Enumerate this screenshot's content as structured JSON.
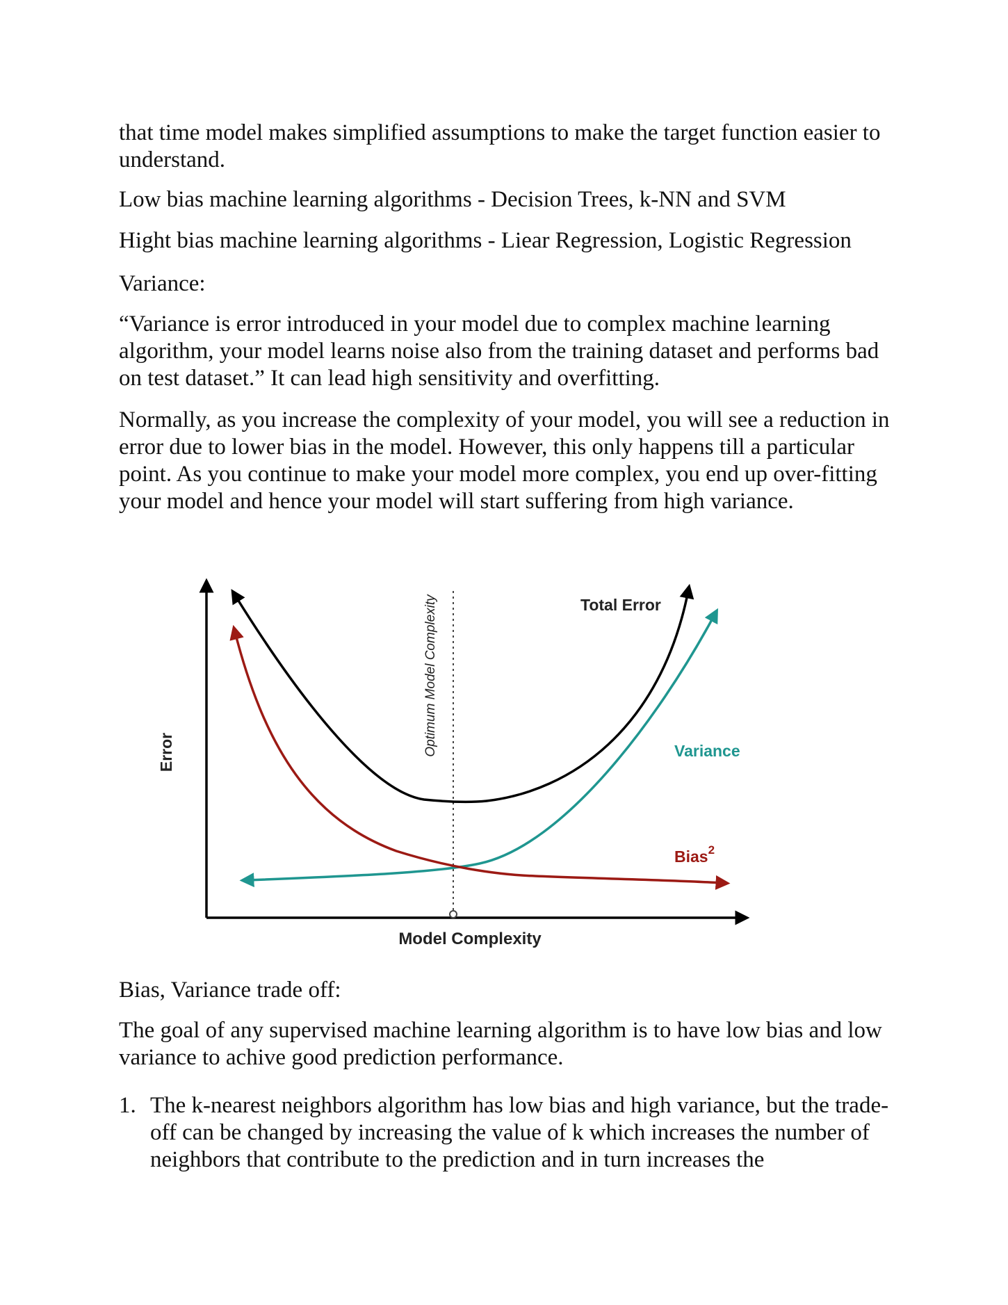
{
  "paragraphs": [
    "that time model makes simplified assumptions to make the target function easier to understand.",
    "Low bias machine learning algorithms - Decision Trees, k-NN and SVM",
    "Hight bias machine learning algorithms - Liear Regression, Logistic Regression",
    "Variance:",
    "“Variance is error introduced in your model due to complex machine learning algorithm, your model learns noise also from the training dataset and performs bad on test dataset.” It can lead high sensitivity and overfitting.",
    "Normally, as you increase the complexity of your model, you will see a reduction in error due to lower bias in the model. However, this only happens till a particular point. As you continue to make your model more complex, you end up over-fitting your model and hence your model will start suffering from high variance.",
    "Bias, Variance trade off:",
    "The goal of any supervised machine learning algorithm is to have low bias and low variance to achive good prediction performance."
  ],
  "list": [
    {
      "number": "1.",
      "text": "The k-nearest neighbors algorithm has low bias and high variance, but the trade-off can be changed by increasing the value of k which increases the number of neighbors that contribute to the prediction and in turn increases the"
    }
  ],
  "figure": {
    "xlabel": "Model Complexity",
    "ylabel": "Error",
    "optimum_label": "Optimum Model Complexity",
    "curves": [
      {
        "name": "Total Error",
        "color": "#000000"
      },
      {
        "name": "Variance",
        "color": "#1f9690"
      },
      {
        "name": "Bias",
        "superscript": "2",
        "color": "#9c1a14"
      }
    ]
  }
}
